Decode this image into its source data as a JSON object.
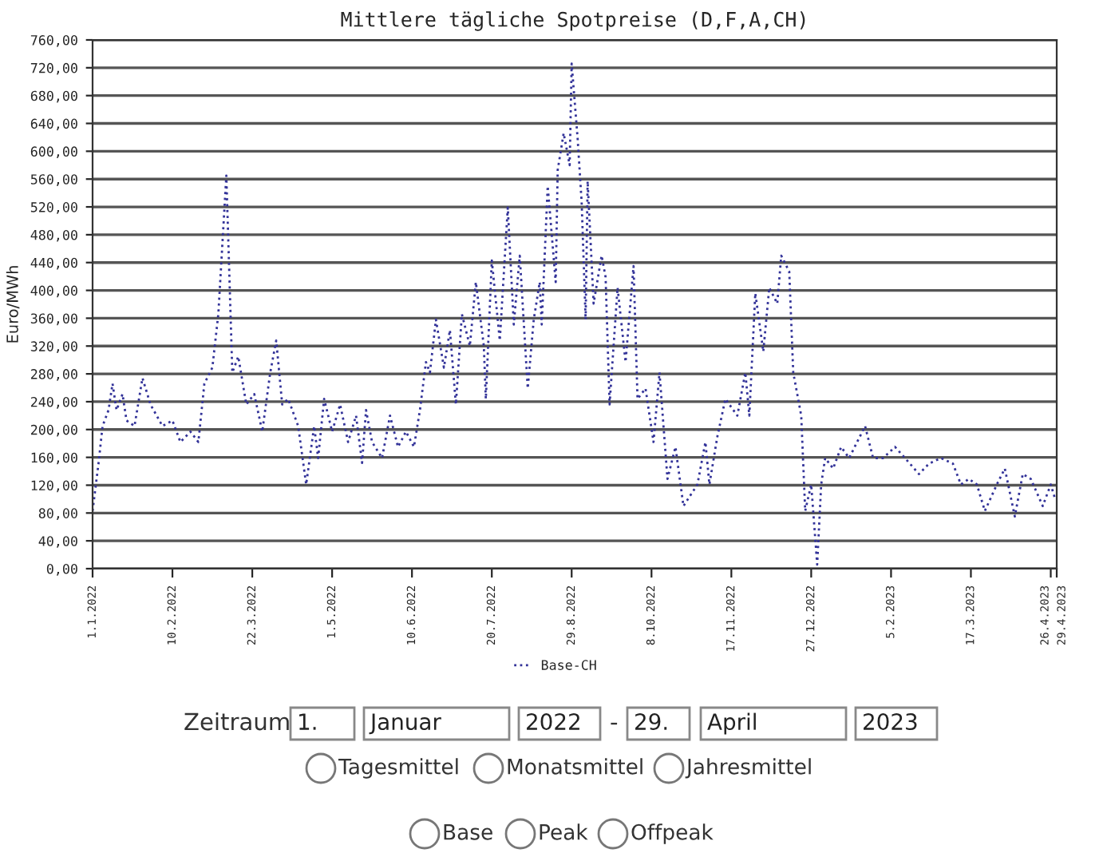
{
  "chart_data": {
    "type": "line",
    "title": "Mittlere tägliche Spotpreise (D,F,A,CH)",
    "ylabel": "Euro/MWh",
    "x": [
      "2022-01-01",
      "2022-01-04",
      "2022-01-06",
      "2022-01-09",
      "2022-01-11",
      "2022-01-13",
      "2022-01-16",
      "2022-01-18",
      "2022-01-22",
      "2022-01-26",
      "2022-01-30",
      "2022-02-05",
      "2022-02-10",
      "2022-02-14",
      "2022-02-19",
      "2022-02-23",
      "2022-02-26",
      "2022-03-02",
      "2022-03-05",
      "2022-03-09",
      "2022-03-12",
      "2022-03-15",
      "2022-03-19",
      "2022-03-23",
      "2022-03-27",
      "2022-03-31",
      "2022-04-03",
      "2022-04-06",
      "2022-04-09",
      "2022-04-14",
      "2022-04-18",
      "2022-04-22",
      "2022-04-24",
      "2022-04-27",
      "2022-05-01",
      "2022-05-05",
      "2022-05-09",
      "2022-05-13",
      "2022-05-16",
      "2022-05-18",
      "2022-05-21",
      "2022-05-26",
      "2022-05-30",
      "2022-06-03",
      "2022-06-07",
      "2022-06-11",
      "2022-06-14",
      "2022-06-17",
      "2022-06-19",
      "2022-06-22",
      "2022-06-26",
      "2022-06-29",
      "2022-07-02",
      "2022-07-05",
      "2022-07-09",
      "2022-07-12",
      "2022-07-16",
      "2022-07-17",
      "2022-07-20",
      "2022-07-24",
      "2022-07-28",
      "2022-07-31",
      "2022-08-03",
      "2022-08-07",
      "2022-08-10",
      "2022-08-13",
      "2022-08-14",
      "2022-08-17",
      "2022-08-21",
      "2022-08-22",
      "2022-08-25",
      "2022-08-28",
      "2022-08-29",
      "2022-09-01",
      "2022-09-03",
      "2022-09-05",
      "2022-09-06",
      "2022-09-09",
      "2022-09-13",
      "2022-09-15",
      "2022-09-17",
      "2022-09-21",
      "2022-09-25",
      "2022-09-29",
      "2022-10-01",
      "2022-10-05",
      "2022-10-09",
      "2022-10-12",
      "2022-10-16",
      "2022-10-20",
      "2022-10-24",
      "2022-10-31",
      "2022-11-04",
      "2022-11-06",
      "2022-11-10",
      "2022-11-14",
      "2022-11-20",
      "2022-11-24",
      "2022-11-26",
      "2022-11-29",
      "2022-12-03",
      "2022-12-06",
      "2022-12-10",
      "2022-12-12",
      "2022-12-16",
      "2022-12-18",
      "2022-12-22",
      "2022-12-24",
      "2022-12-27",
      "2022-12-30",
      "2023-01-01",
      "2023-01-03",
      "2023-01-07",
      "2023-01-11",
      "2023-01-15",
      "2023-01-19",
      "2023-01-23",
      "2023-01-27",
      "2023-02-01",
      "2023-02-07",
      "2023-02-12",
      "2023-02-19",
      "2023-02-24",
      "2023-03-02",
      "2023-03-08",
      "2023-03-12",
      "2023-03-16",
      "2023-03-20",
      "2023-03-24",
      "2023-03-30",
      "2023-04-03",
      "2023-04-08",
      "2023-04-12",
      "2023-04-16",
      "2023-04-22",
      "2023-04-26",
      "2023-04-28"
    ],
    "series": [
      {
        "name": "Base-CH",
        "color": "#333399",
        "values": [
          83,
          152,
          205,
          228,
          266,
          228,
          251,
          213,
          205,
          274,
          236,
          205,
          213,
          182,
          197,
          182,
          266,
          289,
          366,
          565,
          282,
          305,
          236,
          251,
          197,
          282,
          328,
          236,
          244,
          205,
          121,
          205,
          159,
          244,
          197,
          236,
          182,
          220,
          152,
          228,
          182,
          159,
          220,
          175,
          197,
          175,
          228,
          297,
          282,
          358,
          289,
          343,
          236,
          366,
          320,
          412,
          320,
          244,
          443,
          328,
          519,
          351,
          450,
          259,
          358,
          412,
          351,
          550,
          412,
          573,
          626,
          580,
          726,
          618,
          527,
          358,
          557,
          381,
          450,
          419,
          236,
          404,
          297,
          435,
          244,
          259,
          182,
          282,
          129,
          175,
          90,
          121,
          182,
          121,
          190,
          244,
          220,
          282,
          220,
          396,
          312,
          404,
          381,
          450,
          427,
          282,
          220,
          83,
          121,
          6,
          121,
          159,
          144,
          175,
          159,
          182,
          205,
          159,
          159,
          175,
          159,
          136,
          151,
          159,
          151,
          121,
          129,
          121,
          83,
          121,
          144,
          75,
          136,
          129,
          90,
          121,
          102
        ]
      }
    ],
    "xlim": [
      "2022-01-01",
      "2023-04-29"
    ],
    "xticks": [
      {
        "value": "2022-01-01",
        "label": "1.1.2022"
      },
      {
        "value": "2022-02-10",
        "label": "10.2.2022"
      },
      {
        "value": "2022-03-22",
        "label": "22.3.2022"
      },
      {
        "value": "2022-05-01",
        "label": "1.5.2022"
      },
      {
        "value": "2022-06-10",
        "label": "10.6.2022"
      },
      {
        "value": "2022-07-20",
        "label": "20.7.2022"
      },
      {
        "value": "2022-08-29",
        "label": "29.8.2022"
      },
      {
        "value": "2022-10-08",
        "label": "8.10.2022"
      },
      {
        "value": "2022-11-17",
        "label": "17.11.2022"
      },
      {
        "value": "2022-12-27",
        "label": "27.12.2022"
      },
      {
        "value": "2023-02-05",
        "label": "5.2.2023"
      },
      {
        "value": "2023-03-17",
        "label": "17.3.2023"
      },
      {
        "value": "2023-04-26",
        "label": "26.4.2023"
      },
      {
        "value": "2023-04-29",
        "label": "29.4.2023"
      }
    ],
    "ylim": [
      0,
      760
    ],
    "yticks": [
      {
        "value": 0,
        "label": "0,00"
      },
      {
        "value": 40,
        "label": "40,00"
      },
      {
        "value": 80,
        "label": "80,00"
      },
      {
        "value": 120,
        "label": "120,00"
      },
      {
        "value": 160,
        "label": "160,00"
      },
      {
        "value": 200,
        "label": "200,00"
      },
      {
        "value": 240,
        "label": "240,00"
      },
      {
        "value": 280,
        "label": "280,00"
      },
      {
        "value": 320,
        "label": "320,00"
      },
      {
        "value": 360,
        "label": "360,00"
      },
      {
        "value": 400,
        "label": "400,00"
      },
      {
        "value": 440,
        "label": "440,00"
      },
      {
        "value": 480,
        "label": "480,00"
      },
      {
        "value": 520,
        "label": "520,00"
      },
      {
        "value": 560,
        "label": "560,00"
      },
      {
        "value": 600,
        "label": "600,00"
      },
      {
        "value": 640,
        "label": "640,00"
      },
      {
        "value": 680,
        "label": "680,00"
      },
      {
        "value": 720,
        "label": "720,00"
      },
      {
        "value": 760,
        "label": "760,00"
      }
    ],
    "grid": "y",
    "legend": "bottom",
    "line_style": "dotted",
    "marker": "none",
    "annotations": [
      "Zeitraum",
      "1.",
      "Januar",
      "2022",
      "-",
      "29.",
      "April",
      "2023",
      "Tagesmittel",
      "Monatsmittel",
      "Jahresmittel",
      "Base",
      "Peak",
      "Offpeak"
    ]
  }
}
